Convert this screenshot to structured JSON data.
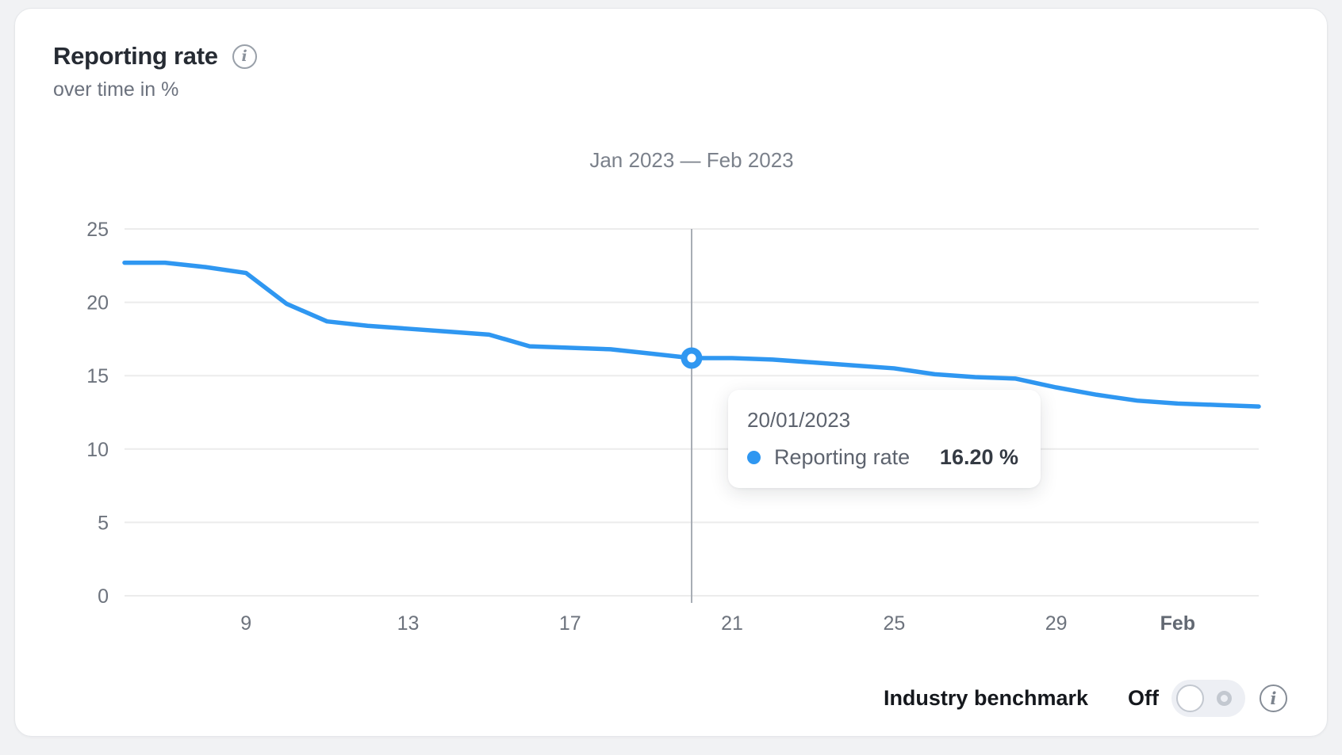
{
  "header": {
    "title": "Reporting rate",
    "subtitle": "over time in %"
  },
  "chart_data": {
    "type": "line",
    "title": "Jan 2023 — Feb 2023",
    "ylabel": "%",
    "ylim": [
      0,
      25
    ],
    "yticks": [
      0,
      5,
      10,
      15,
      20,
      25
    ],
    "grid": true,
    "legend_position": "tooltip-only",
    "x": [
      "06/01/2023",
      "07/01/2023",
      "08/01/2023",
      "09/01/2023",
      "10/01/2023",
      "11/01/2023",
      "12/01/2023",
      "13/01/2023",
      "14/01/2023",
      "15/01/2023",
      "16/01/2023",
      "17/01/2023",
      "18/01/2023",
      "19/01/2023",
      "20/01/2023",
      "21/01/2023",
      "22/01/2023",
      "23/01/2023",
      "24/01/2023",
      "25/01/2023",
      "26/01/2023",
      "27/01/2023",
      "28/01/2023",
      "29/01/2023",
      "30/01/2023",
      "31/01/2023",
      "01/02/2023",
      "02/02/2023",
      "03/02/2023"
    ],
    "xticks": [
      {
        "index": 3,
        "label": "9",
        "bold": false
      },
      {
        "index": 7,
        "label": "13",
        "bold": false
      },
      {
        "index": 11,
        "label": "17",
        "bold": false
      },
      {
        "index": 15,
        "label": "21",
        "bold": false
      },
      {
        "index": 19,
        "label": "25",
        "bold": false
      },
      {
        "index": 23,
        "label": "29",
        "bold": false
      },
      {
        "index": 26,
        "label": "Feb",
        "bold": true
      }
    ],
    "series": [
      {
        "name": "Reporting rate",
        "color": "#2f97f1",
        "values": [
          22.7,
          22.7,
          22.4,
          22.0,
          19.9,
          18.7,
          18.4,
          18.2,
          18.0,
          17.8,
          17.0,
          16.9,
          16.8,
          16.5,
          16.2,
          16.2,
          16.1,
          15.9,
          15.7,
          15.5,
          15.1,
          14.9,
          14.8,
          14.2,
          13.7,
          13.3,
          13.1,
          13.0,
          12.9
        ]
      }
    ],
    "highlight": {
      "index": 14,
      "date": "20/01/2023",
      "value": 16.2,
      "value_label": "16.20 %"
    }
  },
  "tooltip": {
    "date": "20/01/2023",
    "series": "Reporting rate",
    "value": "16.20 %"
  },
  "footer": {
    "benchmark_label": "Industry benchmark",
    "toggle_state": "Off"
  },
  "icons": {
    "header_info": "info-icon",
    "footer_info": "info-icon",
    "glyph": "i"
  },
  "colors": {
    "line": "#2f97f1",
    "marker_fill": "#2f97f1",
    "marker_center": "#ffffff",
    "crosshair": "#a8adb5",
    "grid": "#ececec",
    "axis_text": "#6d737d",
    "axis_text_bold": "#626872"
  }
}
